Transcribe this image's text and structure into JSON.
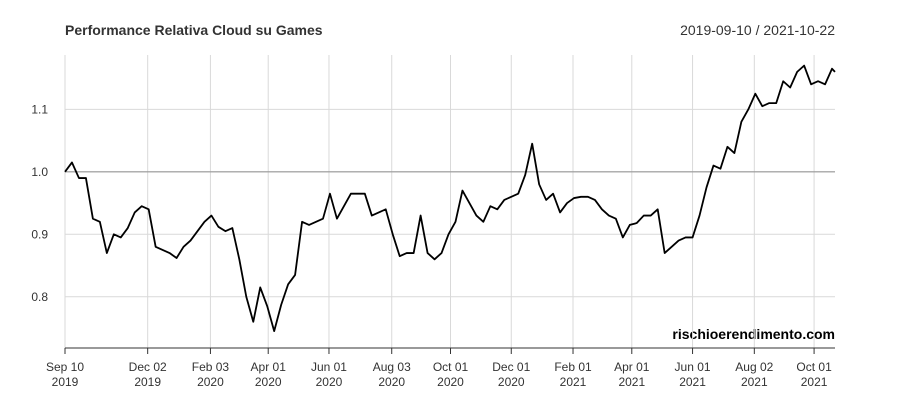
{
  "chart_data": {
    "type": "line",
    "title": "Performance Relativa Cloud su Games",
    "subtitle": "2019-09-10 / 2021-10-22",
    "annotation": "rischioerendimento.com",
    "color": "#000000",
    "grid": true,
    "hline": 1,
    "xlim": [
      "2019-09-10",
      "2021-10-22"
    ],
    "ylim": [
      0.718,
      1.187
    ],
    "yticks": [
      0.8,
      0.9,
      {
        "value": 1,
        "label": "1.0"
      },
      1.1
    ],
    "xticks": [
      {
        "value": "2019-09-10",
        "label": "Sep 10\n2019"
      },
      {
        "value": "2019-12-02",
        "label": "Dec 02\n2019"
      },
      {
        "value": "2020-02-03",
        "label": "Feb 03\n2020"
      },
      {
        "value": "2020-04-01",
        "label": "Apr 01\n2020"
      },
      {
        "value": "2020-06-01",
        "label": "Jun 01\n2020"
      },
      {
        "value": "2020-08-03",
        "label": "Aug 03\n2020"
      },
      {
        "value": "2020-10-01",
        "label": "Oct 01\n2020"
      },
      {
        "value": "2020-12-01",
        "label": "Dec 01\n2020"
      },
      {
        "value": "2021-02-01",
        "label": "Feb 01\n2021"
      },
      {
        "value": "2021-04-01",
        "label": "Apr 01\n2021"
      },
      {
        "value": "2021-06-01",
        "label": "Jun 01\n2021"
      },
      {
        "value": "2021-08-02",
        "label": "Aug 02\n2021"
      },
      {
        "value": "2021-10-01",
        "label": "Oct 01\n2021"
      }
    ],
    "x": [
      "2019-09-10",
      "2019-09-17",
      "2019-09-24",
      "2019-10-01",
      "2019-10-08",
      "2019-10-15",
      "2019-10-22",
      "2019-10-29",
      "2019-11-05",
      "2019-11-12",
      "2019-11-19",
      "2019-11-26",
      "2019-12-03",
      "2019-12-10",
      "2019-12-17",
      "2019-12-24",
      "2019-12-31",
      "2020-01-07",
      "2020-01-14",
      "2020-01-21",
      "2020-01-28",
      "2020-02-04",
      "2020-02-11",
      "2020-02-18",
      "2020-02-25",
      "2020-03-03",
      "2020-03-10",
      "2020-03-17",
      "2020-03-24",
      "2020-03-31",
      "2020-04-07",
      "2020-04-14",
      "2020-04-21",
      "2020-04-28",
      "2020-05-05",
      "2020-05-12",
      "2020-05-19",
      "2020-05-26",
      "2020-06-02",
      "2020-06-09",
      "2020-06-16",
      "2020-06-23",
      "2020-06-30",
      "2020-07-07",
      "2020-07-14",
      "2020-07-21",
      "2020-07-28",
      "2020-08-04",
      "2020-08-11",
      "2020-08-18",
      "2020-08-25",
      "2020-09-01",
      "2020-09-08",
      "2020-09-15",
      "2020-09-22",
      "2020-09-29",
      "2020-10-06",
      "2020-10-13",
      "2020-10-20",
      "2020-10-27",
      "2020-11-03",
      "2020-11-10",
      "2020-11-17",
      "2020-11-24",
      "2020-12-01",
      "2020-12-08",
      "2020-12-15",
      "2020-12-22",
      "2020-12-29",
      "2021-01-05",
      "2021-01-12",
      "2021-01-19",
      "2021-01-26",
      "2021-02-02",
      "2021-02-09",
      "2021-02-16",
      "2021-02-23",
      "2021-03-02",
      "2021-03-09",
      "2021-03-16",
      "2021-03-23",
      "2021-03-30",
      "2021-04-06",
      "2021-04-13",
      "2021-04-20",
      "2021-04-27",
      "2021-05-04",
      "2021-05-11",
      "2021-05-18",
      "2021-05-25",
      "2021-06-01",
      "2021-06-08",
      "2021-06-15",
      "2021-06-22",
      "2021-06-29",
      "2021-07-06",
      "2021-07-13",
      "2021-07-20",
      "2021-07-27",
      "2021-08-03",
      "2021-08-10",
      "2021-08-17",
      "2021-08-24",
      "2021-08-31",
      "2021-09-07",
      "2021-09-14",
      "2021-09-21",
      "2021-09-28",
      "2021-10-05",
      "2021-10-12",
      "2021-10-19",
      "2021-10-22"
    ],
    "values": [
      1.0,
      1.015,
      0.99,
      0.99,
      0.925,
      0.92,
      0.87,
      0.9,
      0.895,
      0.91,
      0.935,
      0.945,
      0.94,
      0.88,
      0.875,
      0.87,
      0.862,
      0.88,
      0.89,
      0.905,
      0.92,
      0.93,
      0.912,
      0.905,
      0.91,
      0.86,
      0.8,
      0.76,
      0.815,
      0.785,
      0.745,
      0.787,
      0.82,
      0.835,
      0.92,
      0.915,
      0.92,
      0.925,
      0.965,
      0.925,
      0.945,
      0.965,
      0.965,
      0.965,
      0.93,
      0.935,
      0.94,
      0.9,
      0.865,
      0.87,
      0.87,
      0.93,
      0.87,
      0.86,
      0.87,
      0.9,
      0.92,
      0.97,
      0.95,
      0.93,
      0.92,
      0.945,
      0.94,
      0.955,
      0.96,
      0.965,
      0.995,
      1.045,
      0.98,
      0.955,
      0.965,
      0.935,
      0.95,
      0.958,
      0.96,
      0.96,
      0.955,
      0.94,
      0.93,
      0.925,
      0.895,
      0.915,
      0.918,
      0.93,
      0.93,
      0.94,
      0.87,
      0.88,
      0.89,
      0.895,
      0.895,
      0.93,
      0.975,
      1.01,
      1.005,
      1.04,
      1.03,
      1.08,
      1.1,
      1.125,
      1.105,
      1.11,
      1.11,
      1.145,
      1.135,
      1.16,
      1.17,
      1.14,
      1.145,
      1.14,
      1.165,
      1.16
    ]
  }
}
